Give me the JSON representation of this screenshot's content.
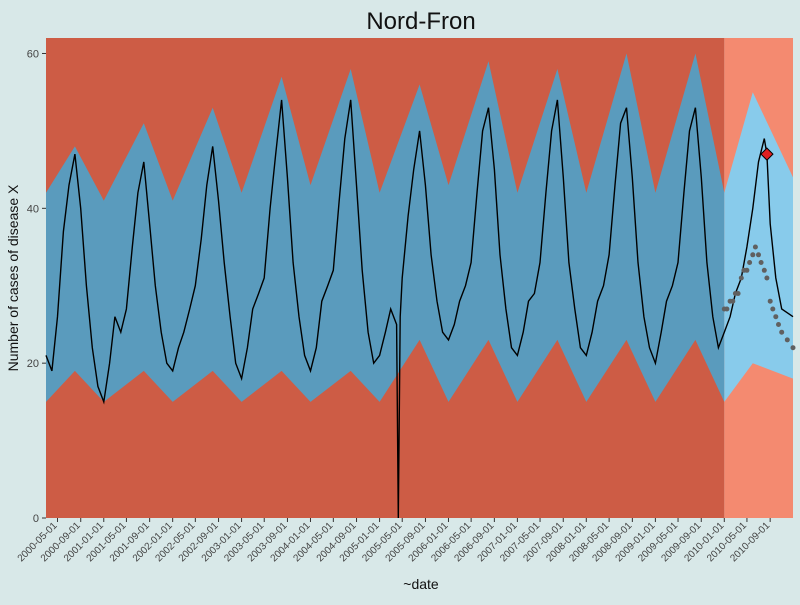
{
  "chart_data": {
    "type": "area",
    "title": "Nord-Fron",
    "xlabel": "~date",
    "ylabel": "Number of cases of disease X",
    "ylim": [
      0,
      62
    ],
    "y_ticks": [
      0,
      20,
      40,
      60
    ],
    "x_range": [
      "2000-03-01",
      "2010-12-31"
    ],
    "x_ticks": [
      "2000-05-01",
      "2000-09-01",
      "2001-01-01",
      "2001-05-01",
      "2001-09-01",
      "2002-01-01",
      "2002-05-01",
      "2002-09-01",
      "2003-01-01",
      "2003-05-01",
      "2003-09-01",
      "2004-01-01",
      "2004-05-01",
      "2004-09-01",
      "2005-01-01",
      "2005-05-01",
      "2005-09-01",
      "2006-01-01",
      "2006-05-01",
      "2006-09-01",
      "2007-01-01",
      "2007-05-01",
      "2007-09-01",
      "2008-01-01",
      "2008-05-01",
      "2008-09-01",
      "2009-01-01",
      "2009-05-01",
      "2009-09-01",
      "2010-01-01",
      "2010-05-01",
      "2010-09-01"
    ],
    "grid": false,
    "legend": "none",
    "prediction_start": "2010-01-01",
    "colors": {
      "panel": "#b0b0b0",
      "upper_band": "#cd5c45",
      "middle_band": "#5a9bbd",
      "middle_band_light": "#7fb3d0",
      "prediction_upper": "#f48a70",
      "prediction_middle": "#88cbeb",
      "observed_line": "#000000",
      "predicted_points": "#606060",
      "highlight": "#e02020"
    },
    "bands": {
      "lower_weekly": [
        {
          "date": "2000-03-01",
          "value": 15
        },
        {
          "date": "2000-08-01",
          "value": 19
        },
        {
          "date": "2001-01-01",
          "value": 15
        },
        {
          "date": "2001-08-01",
          "value": 19
        },
        {
          "date": "2002-01-01",
          "value": 15
        },
        {
          "date": "2002-08-01",
          "value": 19
        },
        {
          "date": "2003-01-01",
          "value": 15
        },
        {
          "date": "2003-08-01",
          "value": 19
        },
        {
          "date": "2004-01-01",
          "value": 15
        },
        {
          "date": "2004-08-01",
          "value": 19
        },
        {
          "date": "2005-01-01",
          "value": 15
        },
        {
          "date": "2005-08-01",
          "value": 23
        },
        {
          "date": "2006-01-01",
          "value": 15
        },
        {
          "date": "2006-08-01",
          "value": 23
        },
        {
          "date": "2007-01-01",
          "value": 15
        },
        {
          "date": "2007-08-01",
          "value": 23
        },
        {
          "date": "2008-01-01",
          "value": 15
        },
        {
          "date": "2008-08-01",
          "value": 23
        },
        {
          "date": "2009-01-01",
          "value": 15
        },
        {
          "date": "2009-08-01",
          "value": 23
        },
        {
          "date": "2010-01-01",
          "value": 15
        },
        {
          "date": "2010-06-01",
          "value": 20
        },
        {
          "date": "2010-12-31",
          "value": 18
        }
      ],
      "upper_weekly": [
        {
          "date": "2000-03-01",
          "value": 42
        },
        {
          "date": "2000-08-01",
          "value": 48
        },
        {
          "date": "2001-01-01",
          "value": 41
        },
        {
          "date": "2001-08-01",
          "value": 51
        },
        {
          "date": "2002-01-01",
          "value": 41
        },
        {
          "date": "2002-08-01",
          "value": 53
        },
        {
          "date": "2003-01-01",
          "value": 42
        },
        {
          "date": "2003-08-01",
          "value": 57
        },
        {
          "date": "2004-01-01",
          "value": 43
        },
        {
          "date": "2004-08-01",
          "value": 58
        },
        {
          "date": "2005-01-01",
          "value": 42
        },
        {
          "date": "2005-08-01",
          "value": 56
        },
        {
          "date": "2006-01-01",
          "value": 43
        },
        {
          "date": "2006-08-01",
          "value": 59
        },
        {
          "date": "2007-01-01",
          "value": 42
        },
        {
          "date": "2007-08-01",
          "value": 58
        },
        {
          "date": "2008-01-01",
          "value": 42
        },
        {
          "date": "2008-08-01",
          "value": 60
        },
        {
          "date": "2009-01-01",
          "value": 42
        },
        {
          "date": "2009-08-01",
          "value": 60
        },
        {
          "date": "2010-01-01",
          "value": 42
        },
        {
          "date": "2010-06-01",
          "value": 55
        },
        {
          "date": "2010-12-31",
          "value": 44
        }
      ]
    },
    "highlight_point": {
      "date": "2010-08-15",
      "value": 47
    },
    "series": [
      {
        "values": [
          {
            "date": "2000-03-01",
            "value": 21
          },
          {
            "date": "2000-04-01",
            "value": 19
          },
          {
            "date": "2000-05-01",
            "value": 26
          },
          {
            "date": "2000-06-01",
            "value": 37
          },
          {
            "date": "2000-07-01",
            "value": 43
          },
          {
            "date": "2000-08-01",
            "value": 47
          },
          {
            "date": "2000-09-01",
            "value": 40
          },
          {
            "date": "2000-10-01",
            "value": 30
          },
          {
            "date": "2000-11-01",
            "value": 22
          },
          {
            "date": "2000-12-01",
            "value": 17
          },
          {
            "date": "2001-01-01",
            "value": 15
          },
          {
            "date": "2001-02-01",
            "value": 20
          },
          {
            "date": "2001-03-01",
            "value": 26
          },
          {
            "date": "2001-04-01",
            "value": 24
          },
          {
            "date": "2001-05-01",
            "value": 27
          },
          {
            "date": "2001-06-01",
            "value": 35
          },
          {
            "date": "2001-07-01",
            "value": 42
          },
          {
            "date": "2001-08-01",
            "value": 46
          },
          {
            "date": "2001-09-01",
            "value": 38
          },
          {
            "date": "2001-10-01",
            "value": 30
          },
          {
            "date": "2001-11-01",
            "value": 24
          },
          {
            "date": "2001-12-01",
            "value": 20
          },
          {
            "date": "2002-01-01",
            "value": 19
          },
          {
            "date": "2002-02-01",
            "value": 22
          },
          {
            "date": "2002-03-01",
            "value": 24
          },
          {
            "date": "2002-04-01",
            "value": 27
          },
          {
            "date": "2002-05-01",
            "value": 30
          },
          {
            "date": "2002-06-01",
            "value": 36
          },
          {
            "date": "2002-07-01",
            "value": 43
          },
          {
            "date": "2002-08-01",
            "value": 48
          },
          {
            "date": "2002-09-01",
            "value": 41
          },
          {
            "date": "2002-10-01",
            "value": 33
          },
          {
            "date": "2002-11-01",
            "value": 26
          },
          {
            "date": "2002-12-01",
            "value": 20
          },
          {
            "date": "2003-01-01",
            "value": 18
          },
          {
            "date": "2003-02-01",
            "value": 22
          },
          {
            "date": "2003-03-01",
            "value": 27
          },
          {
            "date": "2003-04-01",
            "value": 29
          },
          {
            "date": "2003-05-01",
            "value": 31
          },
          {
            "date": "2003-06-01",
            "value": 40
          },
          {
            "date": "2003-07-01",
            "value": 47
          },
          {
            "date": "2003-08-01",
            "value": 54
          },
          {
            "date": "2003-09-01",
            "value": 44
          },
          {
            "date": "2003-10-01",
            "value": 33
          },
          {
            "date": "2003-11-01",
            "value": 26
          },
          {
            "date": "2003-12-01",
            "value": 21
          },
          {
            "date": "2004-01-01",
            "value": 19
          },
          {
            "date": "2004-02-01",
            "value": 22
          },
          {
            "date": "2004-03-01",
            "value": 28
          },
          {
            "date": "2004-04-01",
            "value": 30
          },
          {
            "date": "2004-05-01",
            "value": 32
          },
          {
            "date": "2004-06-01",
            "value": 41
          },
          {
            "date": "2004-07-01",
            "value": 49
          },
          {
            "date": "2004-08-01",
            "value": 54
          },
          {
            "date": "2004-09-01",
            "value": 43
          },
          {
            "date": "2004-10-01",
            "value": 32
          },
          {
            "date": "2004-11-01",
            "value": 24
          },
          {
            "date": "2004-12-01",
            "value": 20
          },
          {
            "date": "2005-01-01",
            "value": 21
          },
          {
            "date": "2005-02-01",
            "value": 24
          },
          {
            "date": "2005-03-01",
            "value": 27
          },
          {
            "date": "2005-04-01",
            "value": 25
          },
          {
            "date": "2005-04-10",
            "value": 0
          },
          {
            "date": "2005-04-20",
            "value": 26
          },
          {
            "date": "2005-05-01",
            "value": 31
          },
          {
            "date": "2005-06-01",
            "value": 39
          },
          {
            "date": "2005-07-01",
            "value": 45
          },
          {
            "date": "2005-08-01",
            "value": 50
          },
          {
            "date": "2005-09-01",
            "value": 43
          },
          {
            "date": "2005-10-01",
            "value": 34
          },
          {
            "date": "2005-11-01",
            "value": 28
          },
          {
            "date": "2005-12-01",
            "value": 24
          },
          {
            "date": "2006-01-01",
            "value": 23
          },
          {
            "date": "2006-02-01",
            "value": 25
          },
          {
            "date": "2006-03-01",
            "value": 28
          },
          {
            "date": "2006-04-01",
            "value": 30
          },
          {
            "date": "2006-05-01",
            "value": 33
          },
          {
            "date": "2006-06-01",
            "value": 42
          },
          {
            "date": "2006-07-01",
            "value": 50
          },
          {
            "date": "2006-08-01",
            "value": 53
          },
          {
            "date": "2006-09-01",
            "value": 45
          },
          {
            "date": "2006-10-01",
            "value": 34
          },
          {
            "date": "2006-11-01",
            "value": 27
          },
          {
            "date": "2006-12-01",
            "value": 22
          },
          {
            "date": "2007-01-01",
            "value": 21
          },
          {
            "date": "2007-02-01",
            "value": 24
          },
          {
            "date": "2007-03-01",
            "value": 28
          },
          {
            "date": "2007-04-01",
            "value": 29
          },
          {
            "date": "2007-05-01",
            "value": 33
          },
          {
            "date": "2007-06-01",
            "value": 42
          },
          {
            "date": "2007-07-01",
            "value": 50
          },
          {
            "date": "2007-08-01",
            "value": 54
          },
          {
            "date": "2007-09-01",
            "value": 44
          },
          {
            "date": "2007-10-01",
            "value": 33
          },
          {
            "date": "2007-11-01",
            "value": 27
          },
          {
            "date": "2007-12-01",
            "value": 22
          },
          {
            "date": "2008-01-01",
            "value": 21
          },
          {
            "date": "2008-02-01",
            "value": 24
          },
          {
            "date": "2008-03-01",
            "value": 28
          },
          {
            "date": "2008-04-01",
            "value": 30
          },
          {
            "date": "2008-05-01",
            "value": 34
          },
          {
            "date": "2008-06-01",
            "value": 43
          },
          {
            "date": "2008-07-01",
            "value": 51
          },
          {
            "date": "2008-08-01",
            "value": 53
          },
          {
            "date": "2008-09-01",
            "value": 44
          },
          {
            "date": "2008-10-01",
            "value": 33
          },
          {
            "date": "2008-11-01",
            "value": 26
          },
          {
            "date": "2008-12-01",
            "value": 22
          },
          {
            "date": "2009-01-01",
            "value": 20
          },
          {
            "date": "2009-02-01",
            "value": 24
          },
          {
            "date": "2009-03-01",
            "value": 28
          },
          {
            "date": "2009-04-01",
            "value": 30
          },
          {
            "date": "2009-05-01",
            "value": 33
          },
          {
            "date": "2009-06-01",
            "value": 42
          },
          {
            "date": "2009-07-01",
            "value": 50
          },
          {
            "date": "2009-08-01",
            "value": 53
          },
          {
            "date": "2009-09-01",
            "value": 44
          },
          {
            "date": "2009-10-01",
            "value": 33
          },
          {
            "date": "2009-11-01",
            "value": 26
          },
          {
            "date": "2009-12-01",
            "value": 22
          },
          {
            "date": "2010-01-01",
            "value": 24
          },
          {
            "date": "2010-02-01",
            "value": 26
          },
          {
            "date": "2010-03-01",
            "value": 29
          },
          {
            "date": "2010-04-01",
            "value": 31
          },
          {
            "date": "2010-05-01",
            "value": 35
          },
          {
            "date": "2010-06-01",
            "value": 40
          },
          {
            "date": "2010-07-01",
            "value": 46
          },
          {
            "date": "2010-08-01",
            "value": 49
          },
          {
            "date": "2010-08-15",
            "value": 47
          },
          {
            "date": "2010-09-01",
            "value": 38
          },
          {
            "date": "2010-10-01",
            "value": 31
          },
          {
            "date": "2010-11-01",
            "value": 27
          },
          {
            "date": "2010-12-31",
            "value": 26
          }
        ]
      },
      {
        "values": [
          {
            "date": "2010-01-01",
            "value": 27
          },
          {
            "date": "2010-01-15",
            "value": 27
          },
          {
            "date": "2010-02-01",
            "value": 28
          },
          {
            "date": "2010-02-15",
            "value": 28
          },
          {
            "date": "2010-03-01",
            "value": 29
          },
          {
            "date": "2010-03-15",
            "value": 29
          },
          {
            "date": "2010-04-01",
            "value": 31
          },
          {
            "date": "2010-04-15",
            "value": 32
          },
          {
            "date": "2010-05-01",
            "value": 32
          },
          {
            "date": "2010-05-15",
            "value": 33
          },
          {
            "date": "2010-06-01",
            "value": 34
          },
          {
            "date": "2010-06-15",
            "value": 35
          },
          {
            "date": "2010-07-01",
            "value": 34
          },
          {
            "date": "2010-07-15",
            "value": 33
          },
          {
            "date": "2010-08-01",
            "value": 32
          },
          {
            "date": "2010-08-15",
            "value": 31
          },
          {
            "date": "2010-09-01",
            "value": 28
          },
          {
            "date": "2010-09-15",
            "value": 27
          },
          {
            "date": "2010-10-01",
            "value": 26
          },
          {
            "date": "2010-10-15",
            "value": 25
          },
          {
            "date": "2010-11-01",
            "value": 24
          },
          {
            "date": "2010-12-01",
            "value": 23
          },
          {
            "date": "2010-12-31",
            "value": 22
          }
        ]
      }
    ]
  }
}
